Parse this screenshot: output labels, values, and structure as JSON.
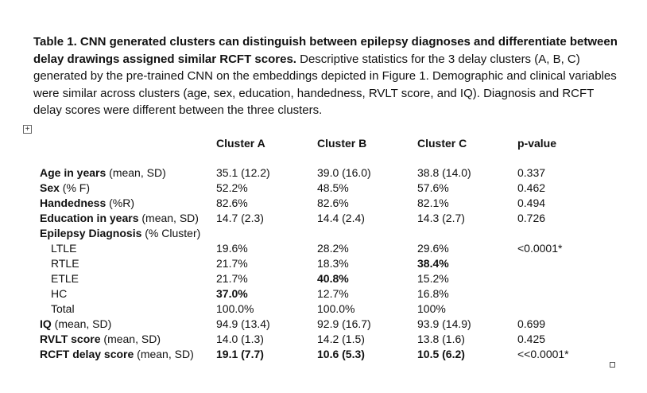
{
  "caption": {
    "bold": "Table 1.  CNN generated clusters can distinguish between epilepsy diagnoses and differentiate between delay drawings assigned similar RCFT scores.",
    "rest": "  Descriptive statistics for the 3 delay clusters (A, B, C) generated by the pre-trained CNN on the embeddings depicted in Figure 1. Demographic and clinical variables were similar across clusters (age, sex, education, handedness, RVLT score, and IQ).  Diagnosis and RCFT delay scores were different between the three clusters."
  },
  "handles": {
    "move": "+",
    "resize": ""
  },
  "table": {
    "headers": [
      "Cluster A",
      "Cluster B",
      "Cluster C",
      "p-value"
    ],
    "rows": [
      {
        "label_bold": "Age in years",
        "label_rest": " (mean, SD)",
        "a": "35.1 (12.2)",
        "b": "39.0 (16.0)",
        "c": "38.8 (14.0)",
        "p": "0.337"
      },
      {
        "label_bold": "Sex",
        "label_rest": " (% F)",
        "a": "52.2%",
        "b": "48.5%",
        "c": "57.6%",
        "p": "0.462"
      },
      {
        "label_bold": "Handedness",
        "label_rest": " (%R)",
        "a": "82.6%",
        "b": "82.6%",
        "c": "82.1%",
        "p": "0.494"
      },
      {
        "label_bold": "Education in years",
        "label_rest": " (mean, SD)",
        "a": "14.7 (2.3)",
        "b": "14.4 (2.4)",
        "c": "14.3 (2.7)",
        "p": "0.726"
      },
      {
        "label_bold": "Epilepsy Diagnosis",
        "label_rest": " (% Cluster)",
        "a": "",
        "b": "",
        "c": "",
        "p": ""
      },
      {
        "label_bold": "",
        "label_rest": "LTLE",
        "a": "19.6%",
        "b": "28.2%",
        "c": "29.6%",
        "p": "<0.0001*"
      },
      {
        "label_bold": "",
        "label_rest": "RTLE",
        "a": "21.7%",
        "b": "18.3%",
        "c": "38.4%",
        "p": ""
      },
      {
        "label_bold": "",
        "label_rest": "ETLE",
        "a": "21.7%",
        "b": "40.8%",
        "c": "15.2%",
        "p": ""
      },
      {
        "label_bold": "",
        "label_rest": "HC",
        "a": "37.0%",
        "b": "12.7%",
        "c": "16.8%",
        "p": ""
      },
      {
        "label_bold": "",
        "label_rest": "Total",
        "a": "100.0%",
        "b": "100.0%",
        "c": "100%",
        "p": ""
      },
      {
        "label_bold": "IQ",
        "label_rest": " (mean, SD)",
        "a": "94.9 (13.4)",
        "b": "92.9 (16.7)",
        "c": "93.9 (14.9)",
        "p": "0.699"
      },
      {
        "label_bold": "RVLT score",
        "label_rest": " (mean, SD)",
        "a": "14.0 (1.3)",
        "b": "14.2 (1.5)",
        "c": "13.8 (1.6)",
        "p": "0.425"
      },
      {
        "label_bold": "RCFT delay score",
        "label_rest": " (mean, SD)",
        "a": "19.1 (7.7)",
        "b": "10.6 (5.3)",
        "c": "10.5 (6.2)",
        "p": "<<0.0001*"
      }
    ],
    "bold_cells": [
      "6.c",
      "7.b",
      "8.a",
      "12.a",
      "12.b",
      "12.c"
    ]
  }
}
